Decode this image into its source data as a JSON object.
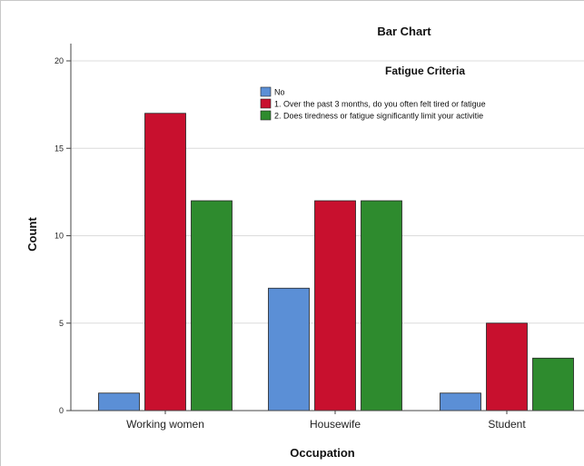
{
  "chart_data": {
    "type": "bar",
    "title": "Bar Chart",
    "legend_title": "Fatigue Criteria",
    "xlabel": "Occupation",
    "ylabel": "Count",
    "categories": [
      "Working women",
      "Housewife",
      "Student"
    ],
    "ylim": [
      0,
      20
    ],
    "yticks": [
      0,
      5,
      10,
      15,
      20
    ],
    "grid": true,
    "legend_position": "top-right",
    "series": [
      {
        "name": "No",
        "color": "#5b8fd6",
        "values": [
          1,
          7,
          1
        ]
      },
      {
        "name": "1. Over the past 3 months, do you often felt tired or fatigue",
        "color": "#c8102e",
        "values": [
          17,
          12,
          5
        ]
      },
      {
        "name": "2. Does tiredness or fatigue significantly limit your activitie",
        "color": "#2e8b2e",
        "values": [
          12,
          12,
          3
        ]
      }
    ]
  }
}
